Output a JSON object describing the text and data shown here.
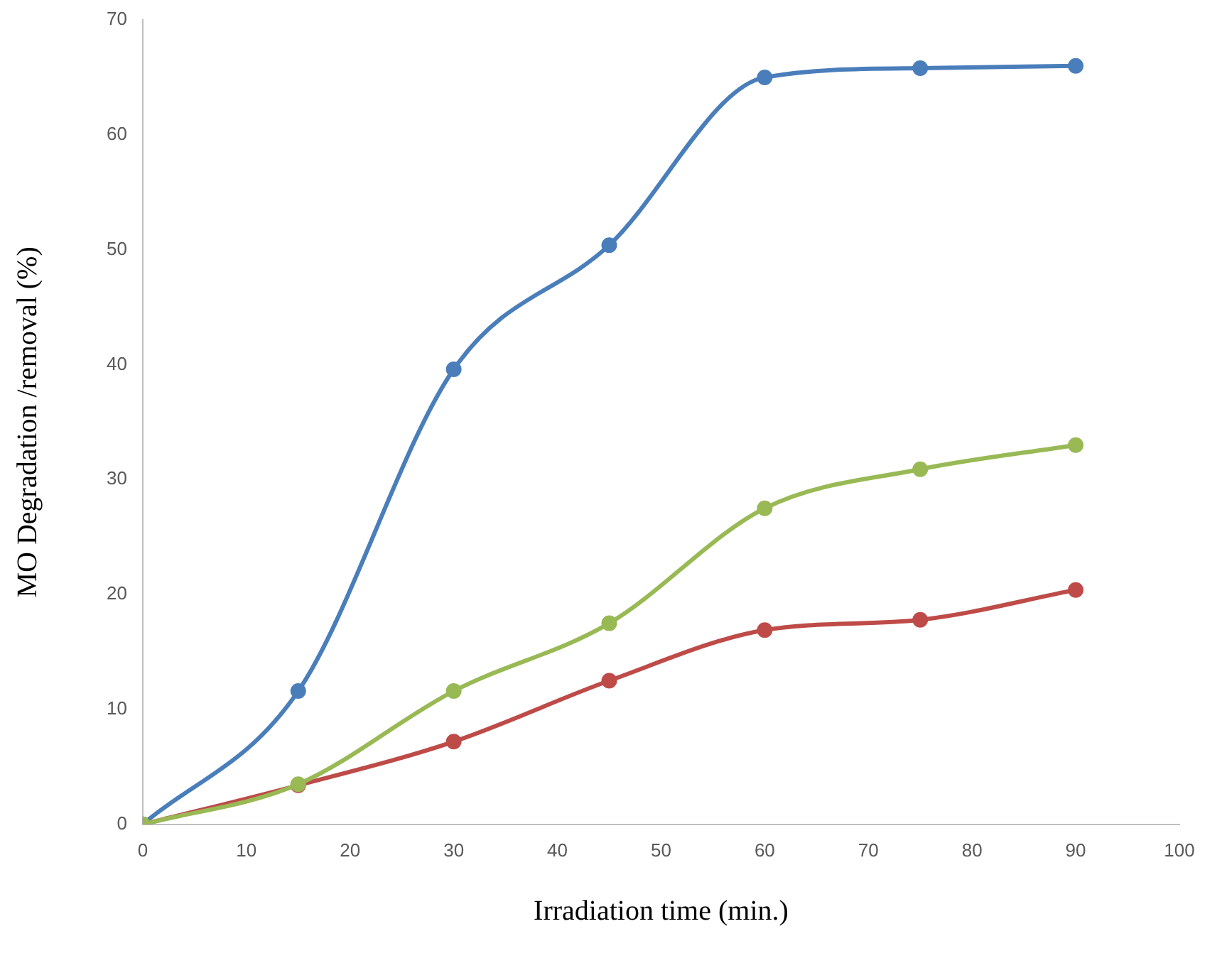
{
  "chart_data": {
    "type": "line",
    "xlabel": "Irradiation time (min.)",
    "ylabel": "MO Degradation /removal (%)",
    "x": [
      0,
      15,
      30,
      45,
      60,
      75,
      90
    ],
    "series": [
      {
        "color": "#4a7ebb",
        "values": [
          0,
          11.6,
          39.6,
          50.4,
          65,
          65.8,
          66
        ]
      },
      {
        "color": "#be4b48",
        "values": [
          0,
          3.4,
          7.2,
          12.5,
          16.9,
          17.8,
          20.4
        ]
      },
      {
        "color": "#98b954",
        "values": [
          0,
          3.5,
          11.6,
          17.5,
          27.5,
          30.9,
          33
        ]
      }
    ],
    "xlim": [
      0,
      100
    ],
    "xticks": [
      0,
      10,
      20,
      30,
      40,
      50,
      60,
      70,
      80,
      90,
      100
    ],
    "ylim": [
      0,
      70
    ],
    "yticks": [
      0,
      10,
      20,
      30,
      40,
      50,
      60,
      70
    ],
    "grid": false,
    "legend": false,
    "marker": "circle",
    "line_style": "solid"
  }
}
